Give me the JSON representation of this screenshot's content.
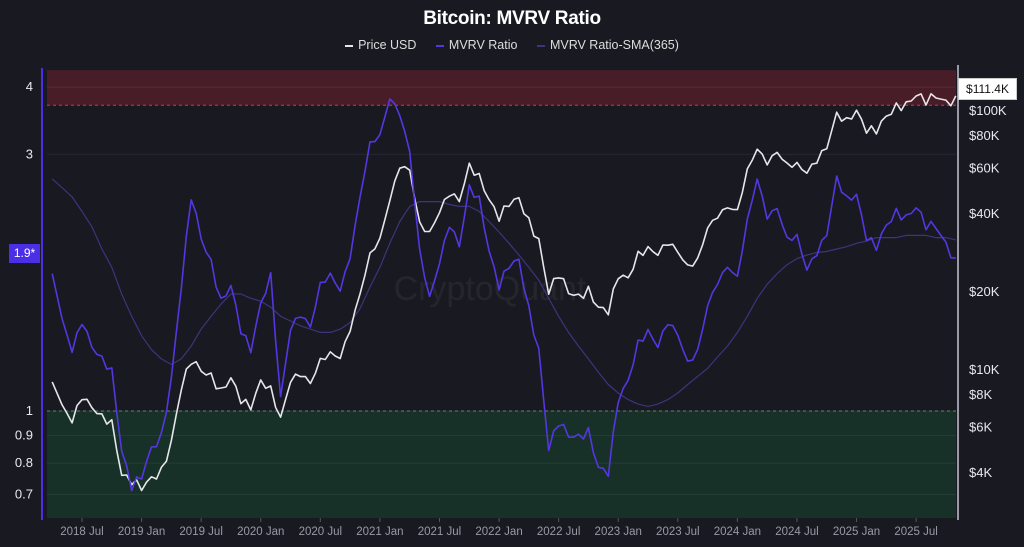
{
  "chart_data": {
    "type": "line",
    "title": "Bitcoin: MVRV Ratio",
    "legend_position": "top-center",
    "grid": true,
    "watermark": "CryptoQuant",
    "x": [
      "2018-04",
      "2018-05",
      "2018-06",
      "2018-07",
      "2018-08",
      "2018-09",
      "2018-10",
      "2018-11",
      "2018-12",
      "2019-01",
      "2019-02",
      "2019-03",
      "2019-04",
      "2019-05",
      "2019-06",
      "2019-07",
      "2019-08",
      "2019-09",
      "2019-10",
      "2019-11",
      "2019-12",
      "2020-01",
      "2020-02",
      "2020-03",
      "2020-04",
      "2020-05",
      "2020-06",
      "2020-07",
      "2020-08",
      "2020-09",
      "2020-10",
      "2020-11",
      "2020-12",
      "2021-01",
      "2021-02",
      "2021-03",
      "2021-04",
      "2021-05",
      "2021-06",
      "2021-07",
      "2021-08",
      "2021-09",
      "2021-10",
      "2021-11",
      "2021-12",
      "2022-01",
      "2022-02",
      "2022-03",
      "2022-04",
      "2022-05",
      "2022-06",
      "2022-07",
      "2022-08",
      "2022-09",
      "2022-10",
      "2022-11",
      "2022-12",
      "2023-01",
      "2023-02",
      "2023-03",
      "2023-04",
      "2023-05",
      "2023-06",
      "2023-07",
      "2023-08",
      "2023-09",
      "2023-10",
      "2023-11",
      "2023-12",
      "2024-01",
      "2024-02",
      "2024-03",
      "2024-04",
      "2024-05",
      "2024-06",
      "2024-07",
      "2024-08",
      "2024-09",
      "2024-10",
      "2024-11",
      "2024-12",
      "2025-01",
      "2025-02",
      "2025-03",
      "2025-04",
      "2025-05",
      "2025-06",
      "2025-07",
      "2025-08",
      "2025-09",
      "2025-10",
      "2025-11"
    ],
    "x_tick_labels": [
      "2018 Jul",
      "2019 Jan",
      "2019 Jul",
      "2020 Jan",
      "2020 Jul",
      "2021 Jan",
      "2021 Jul",
      "2022 Jan",
      "2022 Jul",
      "2023 Jan",
      "2023 Jul",
      "2024 Jan",
      "2024 Jul",
      "2025 Jan",
      "2025 Jul"
    ],
    "left_axis": {
      "scale": "log",
      "ylim": [
        0.63,
        4.3
      ],
      "ticks": [
        0.7,
        0.8,
        0.9,
        1,
        3,
        4
      ],
      "tick_labels": [
        "0.7",
        "0.8",
        "0.9",
        "1",
        "3",
        "4"
      ],
      "current_marker": "1.9*"
    },
    "right_axis": {
      "scale": "log",
      "ticks": [
        4000,
        6000,
        8000,
        10000,
        20000,
        40000,
        60000,
        80000,
        100000
      ],
      "tick_labels": [
        "$4K",
        "$6K",
        "$8K",
        "$10K",
        "$20K",
        "$40K",
        "$60K",
        "$80K",
        "$100K"
      ],
      "current_marker": "$111.4K"
    },
    "zones": [
      {
        "name": "overvalued",
        "from": 3.7,
        "to": 4.3,
        "color": "#5a1f2a"
      },
      {
        "name": "undervalued",
        "from": 0.63,
        "to": 1.0,
        "color": "#173a2c"
      }
    ],
    "series": [
      {
        "name": "Price USD",
        "axis": "right",
        "color": "#e6e6ea",
        "values": [
          9000,
          7500,
          6400,
          7700,
          7000,
          6600,
          6400,
          4000,
          3700,
          3450,
          3800,
          4100,
          5300,
          8500,
          10800,
          10000,
          9600,
          8300,
          9200,
          7500,
          7200,
          9300,
          8600,
          6400,
          8800,
          9500,
          9100,
          11300,
          11700,
          10800,
          13800,
          19700,
          29000,
          33000,
          45000,
          58800,
          57700,
          37300,
          35000,
          41500,
          47100,
          43800,
          61300,
          57000,
          46300,
          38500,
          43200,
          45500,
          37700,
          31800,
          19900,
          23300,
          20000,
          19400,
          20500,
          17200,
          16500,
          23100,
          23100,
          28500,
          29200,
          27200,
          30500,
          29200,
          26000,
          27000,
          34500,
          37700,
          42300,
          42600,
          61200,
          71300,
          60600,
          67500,
          62700,
          64600,
          59000,
          63300,
          70200,
          96400,
          93400,
          102400,
          84300,
          82500,
          94200,
          104600,
          107100,
          115700,
          108200,
          114000,
          109000,
          111400
        ]
      },
      {
        "name": "MVRV Ratio",
        "axis": "left",
        "color": "#5536e0",
        "values": [
          1.8,
          1.5,
          1.3,
          1.45,
          1.3,
          1.25,
          1.2,
          0.85,
          0.72,
          0.75,
          0.85,
          0.9,
          1.15,
          1.7,
          2.5,
          2.1,
          1.9,
          1.6,
          1.7,
          1.4,
          1.3,
          1.6,
          1.8,
          1.05,
          1.4,
          1.5,
          1.45,
          1.75,
          1.8,
          1.65,
          1.9,
          2.5,
          3.2,
          3.3,
          3.8,
          3.5,
          3.0,
          2.0,
          1.65,
          1.9,
          2.2,
          2.0,
          2.6,
          2.5,
          2.0,
          1.7,
          1.85,
          1.9,
          1.55,
          1.3,
          0.85,
          0.95,
          0.9,
          0.9,
          0.92,
          0.78,
          0.76,
          1.05,
          1.15,
          1.35,
          1.4,
          1.3,
          1.45,
          1.4,
          1.25,
          1.3,
          1.55,
          1.7,
          1.85,
          1.8,
          2.3,
          2.7,
          2.25,
          2.35,
          2.1,
          2.15,
          1.85,
          1.95,
          2.1,
          2.7,
          2.5,
          2.55,
          2.1,
          2.0,
          2.2,
          2.35,
          2.3,
          2.4,
          2.2,
          2.2,
          2.05,
          1.9
        ]
      },
      {
        "name": "MVRV Ratio-SMA(365)",
        "axis": "left",
        "color": "#3b357a",
        "values": [
          2.7,
          2.6,
          2.5,
          2.35,
          2.2,
          2.0,
          1.85,
          1.65,
          1.5,
          1.38,
          1.3,
          1.25,
          1.22,
          1.25,
          1.32,
          1.42,
          1.5,
          1.58,
          1.65,
          1.65,
          1.62,
          1.6,
          1.56,
          1.5,
          1.47,
          1.44,
          1.42,
          1.4,
          1.4,
          1.42,
          1.46,
          1.55,
          1.7,
          1.85,
          2.05,
          2.25,
          2.4,
          2.45,
          2.45,
          2.45,
          2.42,
          2.4,
          2.4,
          2.35,
          2.25,
          2.15,
          2.05,
          1.95,
          1.85,
          1.75,
          1.62,
          1.5,
          1.4,
          1.32,
          1.25,
          1.18,
          1.12,
          1.08,
          1.05,
          1.03,
          1.02,
          1.03,
          1.05,
          1.08,
          1.12,
          1.16,
          1.2,
          1.26,
          1.32,
          1.4,
          1.5,
          1.62,
          1.72,
          1.8,
          1.87,
          1.92,
          1.95,
          1.97,
          1.98,
          2.0,
          2.02,
          2.05,
          2.07,
          2.1,
          2.1,
          2.1,
          2.12,
          2.12,
          2.12,
          2.1,
          2.1,
          2.08
        ]
      }
    ]
  }
}
